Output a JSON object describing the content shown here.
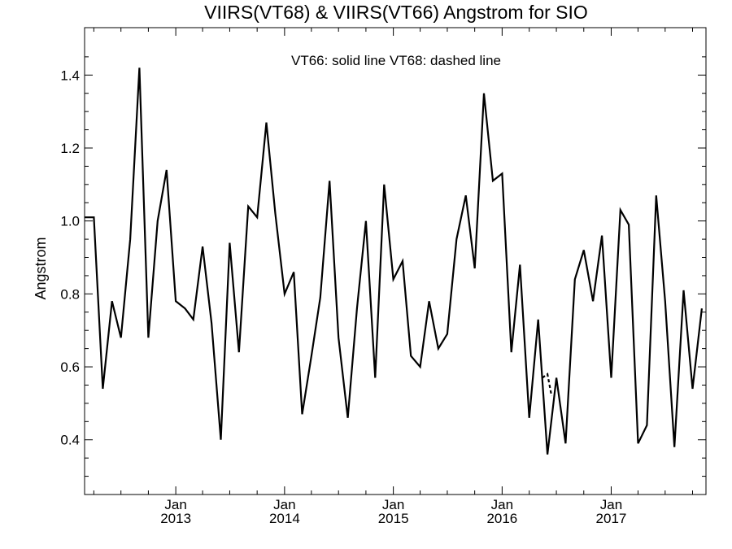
{
  "chart_data": {
    "type": "line",
    "title": "VIIRS(VT68) & VIIRS(VT66)  Angstrom for SIO",
    "annotation": "VT66: solid line   VT68: dashed line",
    "xlabel": "",
    "ylabel": "Angstrom",
    "ylim": [
      0.25,
      1.53
    ],
    "xlim": [
      "2012-03-01",
      "2017-11-15"
    ],
    "y_ticks": [
      0.4,
      0.6,
      0.8,
      1.0,
      1.2,
      1.4
    ],
    "y_tick_labels": [
      "0.4",
      "0.6",
      "0.8",
      "1.0",
      "1.2",
      "1.4"
    ],
    "x_ticks": [
      {
        "month": "Jan",
        "year": "2013",
        "date": "2013-01-01"
      },
      {
        "month": "Jan",
        "year": "2014",
        "date": "2014-01-01"
      },
      {
        "month": "Jan",
        "year": "2015",
        "date": "2015-01-01"
      },
      {
        "month": "Jan",
        "year": "2016",
        "date": "2016-01-01"
      },
      {
        "month": "Jan",
        "year": "2017",
        "date": "2017-01-01"
      }
    ],
    "grid": false,
    "series": [
      {
        "name": "VT66",
        "style": "solid",
        "color": "#000000",
        "x": [
          "2012-03-01",
          "2012-04-01",
          "2012-05-01",
          "2012-06-01",
          "2012-07-01",
          "2012-08-01",
          "2012-09-01",
          "2012-10-01",
          "2012-11-01",
          "2012-12-01",
          "2013-01-01",
          "2013-02-01",
          "2013-03-01",
          "2013-04-01",
          "2013-05-01",
          "2013-06-01",
          "2013-07-01",
          "2013-08-01",
          "2013-09-01",
          "2013-10-01",
          "2013-11-01",
          "2013-12-01",
          "2014-01-01",
          "2014-02-01",
          "2014-03-01",
          "2014-04-01",
          "2014-05-01",
          "2014-06-01",
          "2014-07-01",
          "2014-08-01",
          "2014-09-01",
          "2014-10-01",
          "2014-11-01",
          "2014-12-01",
          "2015-01-01",
          "2015-02-01",
          "2015-03-01",
          "2015-04-01",
          "2015-05-01",
          "2015-06-01",
          "2015-07-01",
          "2015-08-01",
          "2015-09-01",
          "2015-10-01",
          "2015-11-01",
          "2015-12-01",
          "2016-01-01",
          "2016-02-01",
          "2016-03-01",
          "2016-04-01",
          "2016-05-01",
          "2016-06-01",
          "2016-07-01",
          "2016-08-01",
          "2016-09-01",
          "2016-10-01",
          "2016-11-01",
          "2016-12-01",
          "2017-01-01",
          "2017-02-01",
          "2017-03-01",
          "2017-04-01",
          "2017-05-01",
          "2017-06-01",
          "2017-07-01",
          "2017-08-01",
          "2017-09-01",
          "2017-10-01",
          "2017-11-01"
        ],
        "values": [
          1.01,
          1.01,
          0.54,
          0.78,
          0.68,
          0.95,
          1.42,
          0.68,
          1.0,
          1.14,
          0.78,
          0.76,
          0.73,
          0.93,
          0.72,
          0.4,
          0.94,
          0.64,
          1.04,
          1.01,
          1.27,
          1.02,
          0.8,
          0.86,
          0.47,
          0.63,
          0.79,
          1.11,
          0.68,
          0.46,
          0.76,
          1.0,
          0.57,
          1.1,
          0.84,
          0.89,
          0.63,
          0.6,
          0.78,
          0.65,
          0.69,
          0.95,
          1.07,
          0.87,
          1.35,
          1.11,
          1.13,
          0.64,
          0.88,
          0.46,
          0.73,
          0.36,
          0.57,
          0.39,
          0.84,
          0.92,
          0.78,
          0.96,
          0.57,
          1.03,
          0.99,
          0.39,
          0.44,
          1.07,
          0.78,
          0.38,
          0.81,
          0.54,
          0.76
        ]
      },
      {
        "name": "VT68",
        "style": "dashed",
        "color": "#000000",
        "x": [
          "2016-05-15",
          "2016-06-01",
          "2016-06-15"
        ],
        "values": [
          0.57,
          0.58,
          0.52
        ]
      }
    ]
  }
}
